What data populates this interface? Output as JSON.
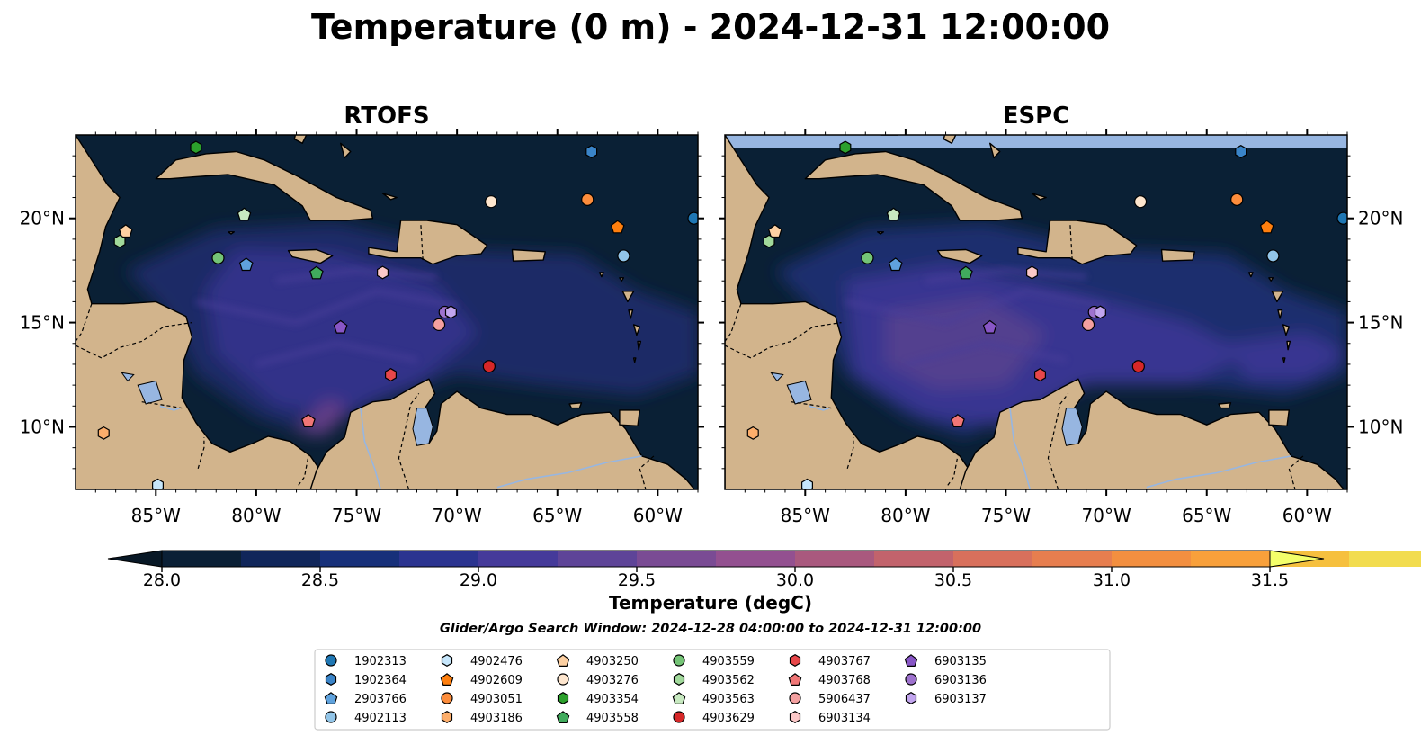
{
  "title": "Temperature (0 m) - 2024-12-31 12:00:00",
  "search_window": "Glider/Argo Search Window: 2024-12-28 04:00:00 to 2024-12-31 12:00:00",
  "colors": {
    "land": "#d2b48c",
    "ocean_base": "#0a2035",
    "lakes": "#97b6e1",
    "rivers": "#97b6e1",
    "espc_nodata_band": "#97b6e1"
  },
  "chart_data": {
    "type": "heatmap",
    "extent": {
      "lon": [
        -89,
        -58
      ],
      "lat": [
        7,
        24
      ]
    },
    "x_ticks": [
      "85°W",
      "80°W",
      "75°W",
      "70°W",
      "65°W",
      "60°W"
    ],
    "x_tick_values": [
      -85,
      -80,
      -75,
      -70,
      -65,
      -60
    ],
    "y_ticks": [
      "10°N",
      "15°N",
      "20°N"
    ],
    "y_tick_values": [
      10,
      15,
      20
    ],
    "panels": [
      {
        "title": "RTOFS",
        "y_labels": "left",
        "nodata_band": false
      },
      {
        "title": "ESPC",
        "y_labels": "right",
        "nodata_band": true
      }
    ],
    "colorbar": {
      "label": "Temperature (degC)",
      "min": 28.0,
      "max": 31.5,
      "step": 0.25,
      "extend": "both",
      "ticks": [
        "28.0",
        "28.5",
        "29.0",
        "29.5",
        "30.0",
        "30.5",
        "31.0",
        "31.5"
      ],
      "tick_values": [
        28.0,
        28.5,
        29.0,
        29.5,
        30.0,
        30.5,
        31.0,
        31.5
      ],
      "colors": [
        "#0b2036",
        "#10265a",
        "#17307a",
        "#2b3490",
        "#453a9a",
        "#5e4498",
        "#7a4b94",
        "#935090",
        "#a9597e",
        "#c2636c",
        "#d8705c",
        "#e77e4f",
        "#f38f40",
        "#f8a03b",
        "#f6c03e",
        "#f2dc4f"
      ],
      "under_color": "#081826",
      "over_color": "#f4ff6a"
    },
    "legend": {
      "columns": 7,
      "entries": [
        {
          "id": "1902313",
          "marker": "circle",
          "color": "#1f77b4",
          "lon": -58.2,
          "lat": 20.0
        },
        {
          "id": "1902364",
          "marker": "hexagon",
          "color": "#3a84c8",
          "lon": -63.3,
          "lat": 23.2
        },
        {
          "id": "2903766",
          "marker": "pentagon",
          "color": "#5fa2dd",
          "lon": -80.5,
          "lat": 17.8
        },
        {
          "id": "4902113",
          "marker": "circle",
          "color": "#92c5e8",
          "lon": -61.7,
          "lat": 18.2
        },
        {
          "id": "4902476",
          "marker": "hexagon",
          "color": "#c6e6fb",
          "lon": -84.9,
          "lat": 7.2
        },
        {
          "id": "4902609",
          "marker": "pentagon",
          "color": "#ff7f0e",
          "lon": -62.0,
          "lat": 19.6
        },
        {
          "id": "4903051",
          "marker": "circle",
          "color": "#fd8d3c",
          "lon": -63.5,
          "lat": 20.9
        },
        {
          "id": "4903186",
          "marker": "hexagon",
          "color": "#fdae6b",
          "lon": -87.6,
          "lat": 9.7
        },
        {
          "id": "4903250",
          "marker": "pentagon",
          "color": "#fdd0a2",
          "lon": -86.5,
          "lat": 19.4
        },
        {
          "id": "4903276",
          "marker": "circle",
          "color": "#fee6ce",
          "lon": -68.3,
          "lat": 20.8
        },
        {
          "id": "4903354",
          "marker": "hexagon",
          "color": "#2ca02c",
          "lon": -83.0,
          "lat": 23.4
        },
        {
          "id": "4903558",
          "marker": "pentagon",
          "color": "#41ab5d",
          "lon": -77.0,
          "lat": 17.4
        },
        {
          "id": "4903559",
          "marker": "circle",
          "color": "#74c476",
          "lon": -81.9,
          "lat": 18.1
        },
        {
          "id": "4903562",
          "marker": "hexagon",
          "color": "#a1d99b",
          "lon": -86.8,
          "lat": 18.9
        },
        {
          "id": "4903563",
          "marker": "pentagon",
          "color": "#c7e9c0",
          "lon": -80.6,
          "lat": 20.2
        },
        {
          "id": "4903629",
          "marker": "circle",
          "color": "#d62728",
          "lon": -68.4,
          "lat": 12.9
        },
        {
          "id": "4903767",
          "marker": "hexagon",
          "color": "#e8474a",
          "lon": -73.3,
          "lat": 12.5
        },
        {
          "id": "4903768",
          "marker": "pentagon",
          "color": "#f07676",
          "lon": -77.4,
          "lat": 10.3
        },
        {
          "id": "5906437",
          "marker": "circle",
          "color": "#f4a0a0",
          "lon": -70.9,
          "lat": 14.9
        },
        {
          "id": "6903134",
          "marker": "hexagon",
          "color": "#fcc8c8",
          "lon": -73.7,
          "lat": 17.4
        },
        {
          "id": "6903135",
          "marker": "pentagon",
          "color": "#8856c6",
          "lon": -75.8,
          "lat": 14.8
        },
        {
          "id": "6903136",
          "marker": "circle",
          "color": "#9e72ce",
          "lon": -70.6,
          "lat": 15.5
        },
        {
          "id": "6903137",
          "marker": "hexagon",
          "color": "#c2a5ee",
          "lon": -70.3,
          "lat": 15.5
        }
      ]
    }
  }
}
